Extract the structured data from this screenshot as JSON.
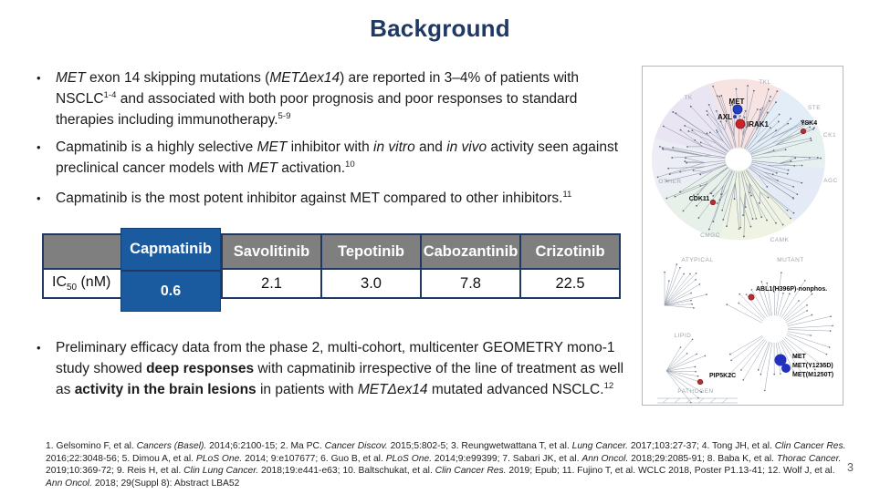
{
  "title": "Background",
  "page_number": "3",
  "colors": {
    "title_color": "#1f3864",
    "table_border": "#1f3864",
    "table_header_bg": "#7f7f7f",
    "table_highlight_bg": "#1a5a9e",
    "met_dot_blue": "#2140c2",
    "inhibited_dot_red": "#c0272d"
  },
  "bullets": [
    {
      "segments": [
        {
          "t": "MET",
          "s": "i"
        },
        {
          "t": " exon 14 skipping mutations (",
          "s": ""
        },
        {
          "t": "METΔex14",
          "s": "i"
        },
        {
          "t": ") are reported in 3–4% of patients with NSCLC",
          "s": ""
        },
        {
          "t": "1-4",
          "s": "sup"
        },
        {
          "t": " and associated with both poor prognosis and poor responses to standard therapies including immunotherapy.",
          "s": ""
        },
        {
          "t": "5-9",
          "s": "sup"
        }
      ]
    },
    {
      "segments": [
        {
          "t": "Capmatinib is a highly selective ",
          "s": ""
        },
        {
          "t": "MET",
          "s": "i"
        },
        {
          "t": " inhibitor with ",
          "s": ""
        },
        {
          "t": "in vitro",
          "s": "i"
        },
        {
          "t": " and ",
          "s": ""
        },
        {
          "t": "in vivo",
          "s": "i"
        },
        {
          "t": " activity seen against preclinical cancer models with ",
          "s": ""
        },
        {
          "t": "MET",
          "s": "i"
        },
        {
          "t": " activation.",
          "s": ""
        },
        {
          "t": "10",
          "s": "sup"
        }
      ]
    },
    {
      "segments": [
        {
          "t": "Capmatinib is the most potent inhibitor against MET compared to other inhibitors.",
          "s": ""
        },
        {
          "t": "11",
          "s": "sup"
        }
      ]
    },
    {
      "segments": [
        {
          "t": "Preliminary efficacy data from the phase 2, multi-cohort, multicenter GEOMETRY mono-1 study showed ",
          "s": ""
        },
        {
          "t": "deep responses",
          "s": "b"
        },
        {
          "t": " with capmatinib irrespective of the line of treatment as well as ",
          "s": ""
        },
        {
          "t": "activity in the brain lesions",
          "s": "b"
        },
        {
          "t": " in patients with ",
          "s": ""
        },
        {
          "t": "METΔex14",
          "s": "i"
        },
        {
          "t": " mutated advanced NSCLC.",
          "s": ""
        },
        {
          "t": "12",
          "s": "sup"
        }
      ]
    }
  ],
  "table": {
    "row_label": {
      "pre": "IC",
      "sub": "50",
      "post": " (nM)"
    },
    "columns": [
      "Capmatinib",
      "Savolitinib",
      "Tepotinib",
      "Cabozantinib",
      "Crizotinib"
    ],
    "values": [
      "0.6",
      "2.1",
      "3.0",
      "7.8",
      "22.5"
    ],
    "highlight_column": "Capmatinib"
  },
  "kinome": {
    "groups": [
      "TK",
      "TKL",
      "STE",
      "CK1",
      "AGC",
      "CAMK",
      "CMGC",
      "OTHER",
      "ATYPICAL",
      "MUTANT"
    ],
    "markers": {
      "met": "MET",
      "axl": "AXL",
      "irak1": "IRAK1",
      "ysk4": "YSK4",
      "cdk11": "CDK11"
    },
    "bottom": {
      "lipid": "LIPID",
      "pip5k2c": "PIP5K2C",
      "pathogen": "PATHOGEN",
      "abl1": "ABL1(H396P)-nonphos.",
      "met": "MET",
      "met_y1235d": "MET(Y1235D)",
      "met_m1250t": "MET(M1250T)"
    }
  },
  "references": {
    "lines": [
      {
        "segments": [
          {
            "t": "1. Gelsomino F, et al. ",
            "s": ""
          },
          {
            "t": "Cancers (Basel).",
            "s": "i"
          },
          {
            "t": " 2014;6:2100-15;  2. Ma PC. ",
            "s": ""
          },
          {
            "t": "Cancer Discov.",
            "s": "i"
          },
          {
            "t": " 2015;5:802-5;  3. Reungwetwattana T, et al. ",
            "s": ""
          },
          {
            "t": "Lung Cancer.",
            "s": "i"
          },
          {
            "t": " 2017;103:27-37;  4. Tong JH, et al. ",
            "s": ""
          },
          {
            "t": "Clin Cancer Res.",
            "s": "i"
          }
        ]
      },
      {
        "segments": [
          {
            "t": "2016;22:3048-56;  5. Dimou A, et al. ",
            "s": ""
          },
          {
            "t": "PLoS One.",
            "s": "i"
          },
          {
            "t": " 2014; 9:e107677; 6. Guo B, et al. ",
            "s": ""
          },
          {
            "t": "PLoS One.",
            "s": "i"
          },
          {
            "t": " 2014;9:e99399;  7. Sabari JK, et al. ",
            "s": ""
          },
          {
            "t": "Ann Oncol.",
            "s": "i"
          },
          {
            "t": " 2018;29:2085-91;  8. Baba K, et al. ",
            "s": ""
          },
          {
            "t": "Thorac Cancer.",
            "s": "i"
          }
        ]
      },
      {
        "segments": [
          {
            "t": "2019;10:369-72;  9. Reis H, et al. ",
            "s": ""
          },
          {
            "t": "Clin Lung Cancer.",
            "s": "i"
          },
          {
            "t": " 2018;19:e441-e63;  10. Baltschukat, et al. ",
            "s": ""
          },
          {
            "t": "Clin Cancer Res.",
            "s": "i"
          },
          {
            "t": " 2019; Epub; 11. Fujino T, et al. WCLC 2018, Poster P1.13-41; 12. Wolf J, et al.",
            "s": ""
          }
        ]
      },
      {
        "segments": [
          {
            "t": "Ann Oncol.",
            "s": "i"
          },
          {
            "t": " 2018; 29(Suppl 8): Abstract LBA52",
            "s": ""
          }
        ]
      }
    ]
  }
}
